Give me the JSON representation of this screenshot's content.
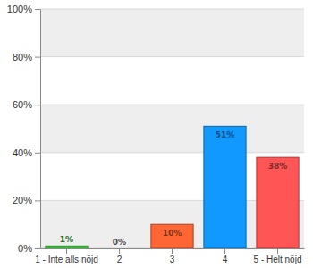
{
  "chart_data": {
    "type": "bar",
    "categories": [
      "1 - Inte alls nöjd",
      "2",
      "3",
      "4",
      "5 - Helt nöjd"
    ],
    "values": [
      1,
      0,
      10,
      51,
      38
    ],
    "value_labels": [
      "1%",
      "0%",
      "10%",
      "51%",
      "38%"
    ],
    "colors": [
      "#44dd44",
      "#999999",
      "#ff6633",
      "#1199ff",
      "#ff5555"
    ],
    "ylim": [
      0,
      100
    ],
    "yticks": [
      {
        "value": 0,
        "label": "0%"
      },
      {
        "value": 20,
        "label": "20%"
      },
      {
        "value": 40,
        "label": "40%"
      },
      {
        "value": 60,
        "label": "60%"
      },
      {
        "value": 80,
        "label": "80%"
      },
      {
        "value": 100,
        "label": "100%"
      }
    ],
    "grid": true,
    "data_labels": true
  }
}
